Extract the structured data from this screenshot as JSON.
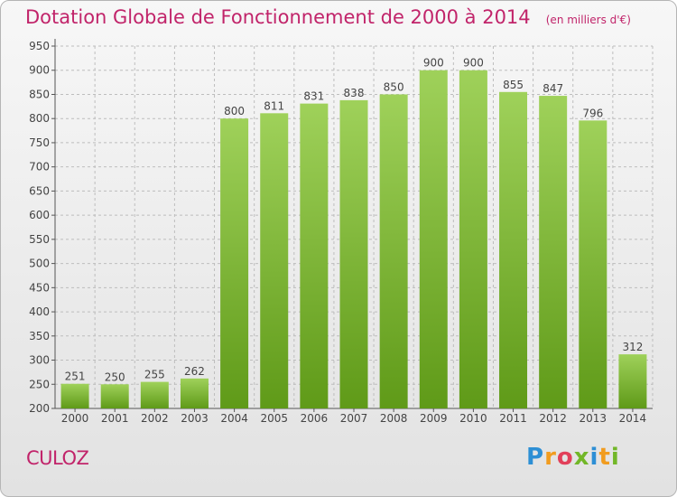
{
  "header": {
    "title": "Dotation Globale de Fonctionnement de 2000 à 2014",
    "unit": "(en milliers d'€)"
  },
  "footer": {
    "commune": "CULOZ",
    "logo": [
      "P",
      "r",
      "o",
      "x",
      "i",
      "t",
      "i"
    ]
  },
  "colors": {
    "title": "#c1246a",
    "bar_top": "#9fd15a",
    "bar_bottom": "#5f9a18",
    "grid": "#bdbdbd",
    "logo": [
      "#2d8fd5",
      "#f19c1f",
      "#e2405a",
      "#72b728",
      "#2d8fd5",
      "#f19c1f",
      "#72b728"
    ]
  },
  "chart_data": {
    "type": "bar",
    "title": "Dotation Globale de Fonctionnement de 2000 à 2014",
    "subtitle": "(en milliers d'€)",
    "categories": [
      "2000",
      "2001",
      "2002",
      "2003",
      "2004",
      "2005",
      "2006",
      "2007",
      "2008",
      "2009",
      "2010",
      "2011",
      "2012",
      "2013",
      "2014"
    ],
    "values": [
      251,
      250,
      255,
      262,
      800,
      811,
      831,
      838,
      850,
      900,
      900,
      855,
      847,
      796,
      312
    ],
    "ylim": [
      200,
      950
    ],
    "yticks": [
      200,
      250,
      300,
      350,
      400,
      450,
      500,
      550,
      600,
      650,
      700,
      750,
      800,
      850,
      900,
      950
    ],
    "grid": "horizontal dashed",
    "data_labels": true
  }
}
